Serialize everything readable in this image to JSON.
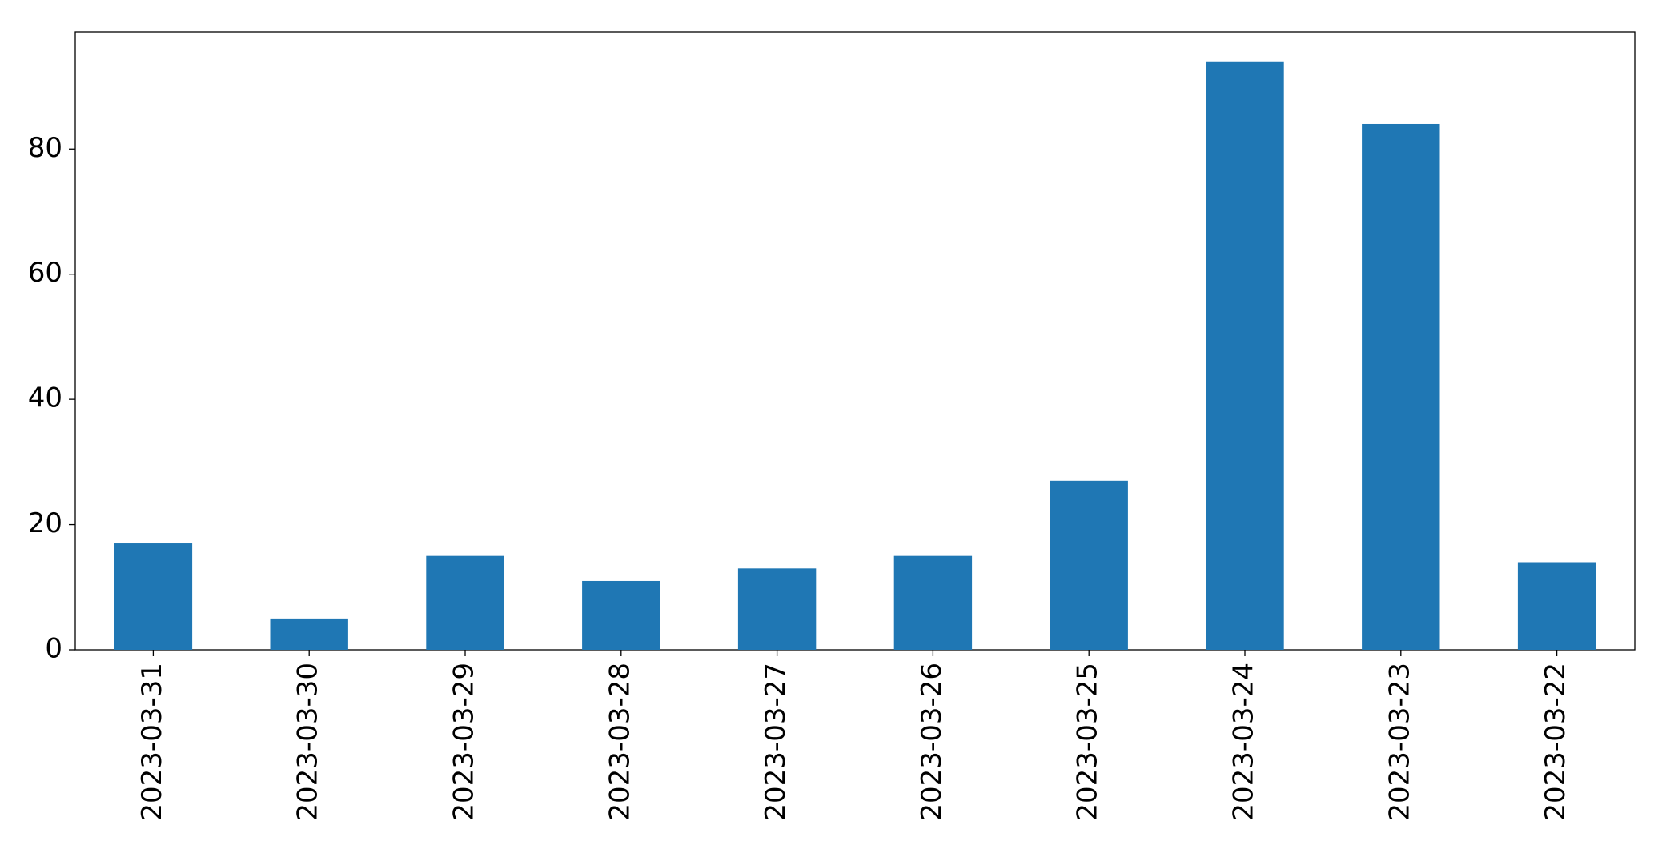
{
  "chart_data": {
    "type": "bar",
    "categories": [
      "2023-03-31",
      "2023-03-30",
      "2023-03-29",
      "2023-03-28",
      "2023-03-27",
      "2023-03-26",
      "2023-03-25",
      "2023-03-24",
      "2023-03-23",
      "2023-03-22"
    ],
    "values": [
      17,
      5,
      15,
      11,
      13,
      15,
      27,
      94,
      84,
      14
    ],
    "color": "#1f77b4",
    "ylim": [
      0,
      98.7
    ],
    "yticks": [
      0,
      20,
      40,
      60,
      80
    ],
    "grid": false
  }
}
